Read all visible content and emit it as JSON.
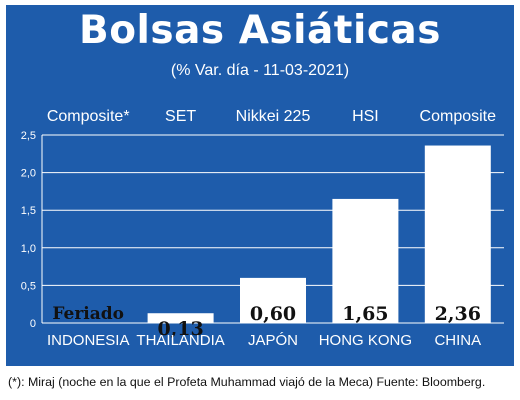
{
  "header": {
    "title": "Bolsas Asiáticas",
    "subtitle": "(% Var. día - 11-03-2021)"
  },
  "footnote": "(*): Miraj (noche en la que el Profeta Muhammad viajó de la Meca) Fuente: Bloomberg.",
  "colors": {
    "background": "#1e5cab",
    "bar": "#ffffff",
    "text": "#ffffff",
    "value_label": "#111111"
  },
  "chart_data": {
    "type": "bar",
    "title": "Bolsas Asiáticas",
    "subtitle": "(% Var. día - 11-03-2021)",
    "categories": [
      "INDONESIA",
      "THAILANDIA",
      "JAPÓN",
      "HONG KONG",
      "CHINA"
    ],
    "index_names": [
      "Composite*",
      "SET",
      "Nikkei 225",
      "HSI",
      "Composite"
    ],
    "values": [
      0,
      0.13,
      0.6,
      1.65,
      2.36
    ],
    "value_labels": [
      "Feriado",
      "0,13",
      "0,60",
      "1,65",
      "2,36"
    ],
    "ylim": [
      0,
      2.5
    ],
    "yticks": [
      0,
      0.5,
      1.0,
      1.5,
      2.0,
      2.5
    ],
    "ytick_labels": [
      "0",
      "0,5",
      "1,0",
      "1,5",
      "2,0",
      "2,5"
    ],
    "grid": true
  }
}
